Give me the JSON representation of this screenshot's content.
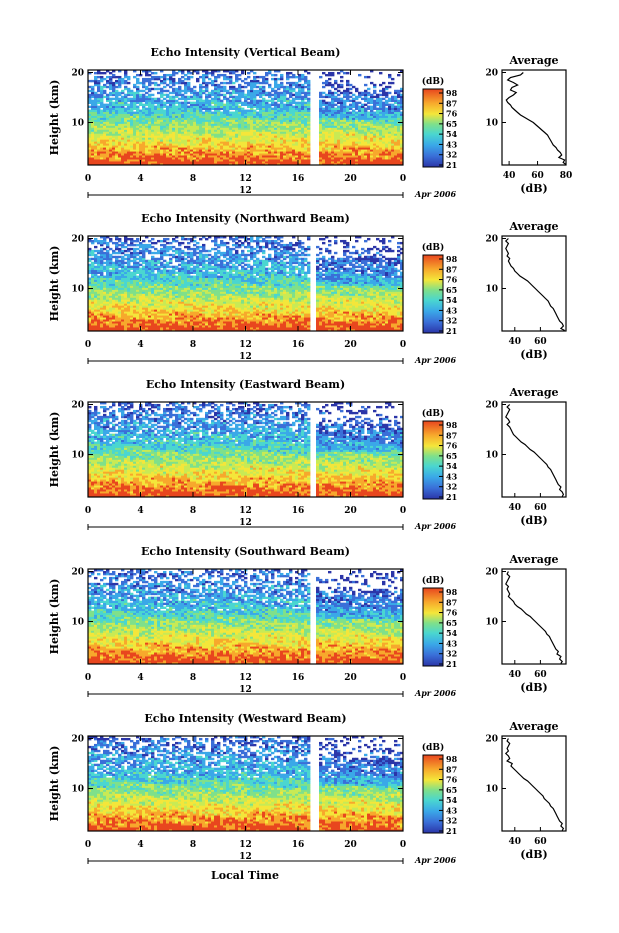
{
  "chart_data": [
    {
      "type": "heatmap",
      "title": "Echo Intensity (Vertical Beam)",
      "ylabel": "Height (km)",
      "x_ticks": [
        "0",
        "4",
        "8",
        "12",
        "16",
        "20",
        "0"
      ],
      "y_ticks": [
        "20",
        "10"
      ],
      "xlim": [
        0,
        24
      ],
      "ylim": [
        1.5,
        20.5
      ],
      "data_gap_hours": [
        17.0,
        17.6
      ],
      "date_label": "12",
      "month_label": "Apr 2006",
      "colorbar": {
        "unit": "(dB)",
        "ticks": [
          "98",
          "87",
          "76",
          "65",
          "54",
          "43",
          "32",
          "21"
        ]
      },
      "profile": {
        "title": "Average",
        "xlabel": "(dB)",
        "x_ticks": [
          "40",
          "60",
          "80"
        ],
        "xlim": [
          35,
          80
        ],
        "y_ticks": [
          "20",
          "10"
        ],
        "points": [
          [
            50,
            20
          ],
          [
            48,
            19.5
          ],
          [
            41,
            19
          ],
          [
            39,
            18.5
          ],
          [
            43,
            18
          ],
          [
            46,
            17.5
          ],
          [
            42,
            17
          ],
          [
            41,
            16.5
          ],
          [
            45,
            16
          ],
          [
            43,
            15.5
          ],
          [
            40,
            15
          ],
          [
            38,
            14.5
          ],
          [
            39,
            14
          ],
          [
            41,
            13.5
          ],
          [
            42,
            13
          ],
          [
            44,
            12.5
          ],
          [
            46,
            12
          ],
          [
            48,
            11.5
          ],
          [
            51,
            11
          ],
          [
            54,
            10.5
          ],
          [
            57,
            10
          ],
          [
            59,
            9.5
          ],
          [
            61,
            9
          ],
          [
            63,
            8.5
          ],
          [
            65,
            8
          ],
          [
            67,
            7.5
          ],
          [
            68,
            7
          ],
          [
            69,
            6.5
          ],
          [
            70,
            6
          ],
          [
            71,
            5.5
          ],
          [
            73,
            5
          ],
          [
            74,
            4.5
          ],
          [
            76,
            4
          ],
          [
            77,
            3.5
          ],
          [
            75,
            3
          ],
          [
            79,
            2.5
          ],
          [
            78,
            2
          ],
          [
            80,
            1.6
          ]
        ]
      }
    },
    {
      "type": "heatmap",
      "title": "Echo Intensity (Northward Beam)",
      "ylabel": "Height (km)",
      "x_ticks": [
        "0",
        "4",
        "8",
        "12",
        "16",
        "20",
        "0"
      ],
      "y_ticks": [
        "20",
        "10"
      ],
      "xlim": [
        0,
        24
      ],
      "ylim": [
        1.5,
        20.5
      ],
      "data_gap_hours": [
        16.8,
        17.4
      ],
      "date_label": "12",
      "month_label": "Apr 2006",
      "colorbar": {
        "unit": "(dB)",
        "ticks": [
          "98",
          "87",
          "76",
          "65",
          "54",
          "43",
          "32",
          "21"
        ]
      },
      "profile": {
        "title": "Average",
        "xlabel": "(dB)",
        "x_ticks": [
          "40",
          "60"
        ],
        "xlim": [
          30,
          80
        ],
        "y_ticks": [
          "20",
          "10"
        ],
        "points": [
          [
            35,
            20
          ],
          [
            33,
            19.5
          ],
          [
            35,
            19
          ],
          [
            34,
            18.5
          ],
          [
            33,
            18
          ],
          [
            34,
            17.5
          ],
          [
            35,
            17
          ],
          [
            34,
            16.5
          ],
          [
            36,
            16
          ],
          [
            35,
            15.5
          ],
          [
            36,
            15
          ],
          [
            37,
            14.5
          ],
          [
            39,
            14
          ],
          [
            40,
            13.5
          ],
          [
            42,
            13
          ],
          [
            44,
            12.5
          ],
          [
            47,
            12
          ],
          [
            50,
            11.5
          ],
          [
            52,
            11
          ],
          [
            54,
            10.5
          ],
          [
            56,
            10
          ],
          [
            58,
            9.5
          ],
          [
            60,
            9
          ],
          [
            62,
            8.5
          ],
          [
            64,
            8
          ],
          [
            66,
            7.5
          ],
          [
            67,
            7
          ],
          [
            68,
            6.5
          ],
          [
            70,
            6
          ],
          [
            71,
            5.5
          ],
          [
            72,
            5
          ],
          [
            73,
            4.5
          ],
          [
            74,
            4
          ],
          [
            75,
            3.5
          ],
          [
            77,
            3
          ],
          [
            78,
            2.5
          ],
          [
            76,
            2
          ],
          [
            79,
            1.6
          ]
        ]
      }
    },
    {
      "type": "heatmap",
      "title": "Echo Intensity (Eastward Beam)",
      "ylabel": "Height (km)",
      "x_ticks": [
        "0",
        "4",
        "8",
        "12",
        "16",
        "20",
        "0"
      ],
      "y_ticks": [
        "20",
        "10"
      ],
      "xlim": [
        0,
        24
      ],
      "ylim": [
        1.5,
        20.5
      ],
      "data_gap_hours": [
        16.8,
        17.4
      ],
      "date_label": "12",
      "month_label": "Apr 2006",
      "colorbar": {
        "unit": "(dB)",
        "ticks": [
          "98",
          "87",
          "76",
          "65",
          "54",
          "43",
          "32",
          "21"
        ]
      },
      "profile": {
        "title": "Average",
        "xlabel": "(dB)",
        "x_ticks": [
          "40",
          "60"
        ],
        "xlim": [
          30,
          80
        ],
        "y_ticks": [
          "20",
          "10"
        ],
        "points": [
          [
            36,
            20
          ],
          [
            34,
            19.5
          ],
          [
            36,
            19
          ],
          [
            35,
            18.5
          ],
          [
            34,
            18
          ],
          [
            33,
            17.5
          ],
          [
            35,
            17
          ],
          [
            36,
            16.5
          ],
          [
            34,
            16
          ],
          [
            36,
            15.5
          ],
          [
            37,
            15
          ],
          [
            38,
            14.5
          ],
          [
            39,
            14
          ],
          [
            41,
            13.5
          ],
          [
            43,
            13
          ],
          [
            45,
            12.5
          ],
          [
            48,
            12
          ],
          [
            50,
            11.5
          ],
          [
            52,
            11
          ],
          [
            55,
            10.5
          ],
          [
            57,
            10
          ],
          [
            59,
            9.5
          ],
          [
            61,
            9
          ],
          [
            63,
            8.5
          ],
          [
            65,
            8
          ],
          [
            66,
            7.5
          ],
          [
            68,
            7
          ],
          [
            69,
            6.5
          ],
          [
            70,
            6
          ],
          [
            71,
            5.5
          ],
          [
            72,
            5
          ],
          [
            73,
            4.5
          ],
          [
            74,
            4
          ],
          [
            76,
            3.5
          ],
          [
            75,
            3
          ],
          [
            77,
            2.5
          ],
          [
            78,
            2
          ],
          [
            77,
            1.6
          ]
        ]
      }
    },
    {
      "type": "heatmap",
      "title": "Echo Intensity (Southward Beam)",
      "ylabel": "Height (km)",
      "x_ticks": [
        "0",
        "4",
        "8",
        "12",
        "16",
        "20",
        "0"
      ],
      "y_ticks": [
        "20",
        "10"
      ],
      "xlim": [
        0,
        24
      ],
      "ylim": [
        1.5,
        20.5
      ],
      "data_gap_hours": [
        16.8,
        17.4
      ],
      "date_label": "12",
      "month_label": "Apr 2006",
      "colorbar": {
        "unit": "(dB)",
        "ticks": [
          "98",
          "87",
          "76",
          "65",
          "54",
          "43",
          "32",
          "21"
        ]
      },
      "profile": {
        "title": "Average",
        "xlabel": "(dB)",
        "x_ticks": [
          "40",
          "60"
        ],
        "xlim": [
          30,
          80
        ],
        "y_ticks": [
          "20",
          "10"
        ],
        "points": [
          [
            35,
            20
          ],
          [
            34,
            19.5
          ],
          [
            36,
            19
          ],
          [
            35,
            18.5
          ],
          [
            34,
            18
          ],
          [
            33,
            17.5
          ],
          [
            35,
            17
          ],
          [
            34,
            16.5
          ],
          [
            35,
            16
          ],
          [
            36,
            15.5
          ],
          [
            35,
            15
          ],
          [
            37,
            14.5
          ],
          [
            39,
            14
          ],
          [
            40,
            13.5
          ],
          [
            42,
            13
          ],
          [
            45,
            12.5
          ],
          [
            47,
            12
          ],
          [
            49,
            11.5
          ],
          [
            52,
            11
          ],
          [
            54,
            10.5
          ],
          [
            56,
            10
          ],
          [
            58,
            9.5
          ],
          [
            60,
            9
          ],
          [
            62,
            8.5
          ],
          [
            64,
            8
          ],
          [
            65,
            7.5
          ],
          [
            67,
            7
          ],
          [
            68,
            6.5
          ],
          [
            69,
            6
          ],
          [
            70,
            5.5
          ],
          [
            71,
            5
          ],
          [
            72,
            4.5
          ],
          [
            74,
            4
          ],
          [
            73,
            3.5
          ],
          [
            76,
            3
          ],
          [
            75,
            2.5
          ],
          [
            77,
            2
          ],
          [
            76,
            1.6
          ]
        ]
      }
    },
    {
      "type": "heatmap",
      "title": "Echo Intensity (Westward Beam)",
      "ylabel": "Height (km)",
      "xlabel": "Local Time",
      "x_ticks": [
        "0",
        "4",
        "8",
        "12",
        "16",
        "20",
        "0"
      ],
      "y_ticks": [
        "20",
        "10"
      ],
      "xlim": [
        0,
        24
      ],
      "ylim": [
        1.5,
        20.5
      ],
      "data_gap_hours": [
        17.0,
        17.6
      ],
      "date_label": "12",
      "month_label": "Apr 2006",
      "colorbar": {
        "unit": "(dB)",
        "ticks": [
          "98",
          "87",
          "76",
          "65",
          "54",
          "43",
          "32",
          "21"
        ]
      },
      "profile": {
        "title": "Average",
        "xlabel": "(dB)",
        "x_ticks": [
          "40",
          "60"
        ],
        "xlim": [
          30,
          80
        ],
        "y_ticks": [
          "20",
          "10"
        ],
        "points": [
          [
            35,
            20
          ],
          [
            34,
            19.5
          ],
          [
            36,
            19
          ],
          [
            35,
            18.5
          ],
          [
            34,
            18
          ],
          [
            35,
            17.5
          ],
          [
            33,
            17
          ],
          [
            35,
            16.5
          ],
          [
            36,
            16
          ],
          [
            34,
            15.5
          ],
          [
            38,
            15
          ],
          [
            37,
            14.5
          ],
          [
            39,
            14
          ],
          [
            41,
            13.5
          ],
          [
            43,
            13
          ],
          [
            45,
            12.5
          ],
          [
            47,
            12
          ],
          [
            50,
            11.5
          ],
          [
            52,
            11
          ],
          [
            54,
            10.5
          ],
          [
            56,
            10
          ],
          [
            58,
            9.5
          ],
          [
            60,
            9
          ],
          [
            62,
            8.5
          ],
          [
            63,
            8
          ],
          [
            65,
            7.5
          ],
          [
            67,
            7
          ],
          [
            68,
            6.5
          ],
          [
            70,
            6
          ],
          [
            71,
            5.5
          ],
          [
            72,
            5
          ],
          [
            73,
            4.5
          ],
          [
            74,
            4
          ],
          [
            75,
            3.5
          ],
          [
            77,
            3
          ],
          [
            76,
            2.5
          ],
          [
            78,
            2
          ],
          [
            77,
            1.6
          ]
        ]
      }
    }
  ],
  "colormap": [
    "#2b35a8",
    "#3a6fd8",
    "#3aa8e8",
    "#4ad6d0",
    "#7fe08a",
    "#c8ea55",
    "#f4e63a",
    "#f7a82c",
    "#e8461e"
  ]
}
